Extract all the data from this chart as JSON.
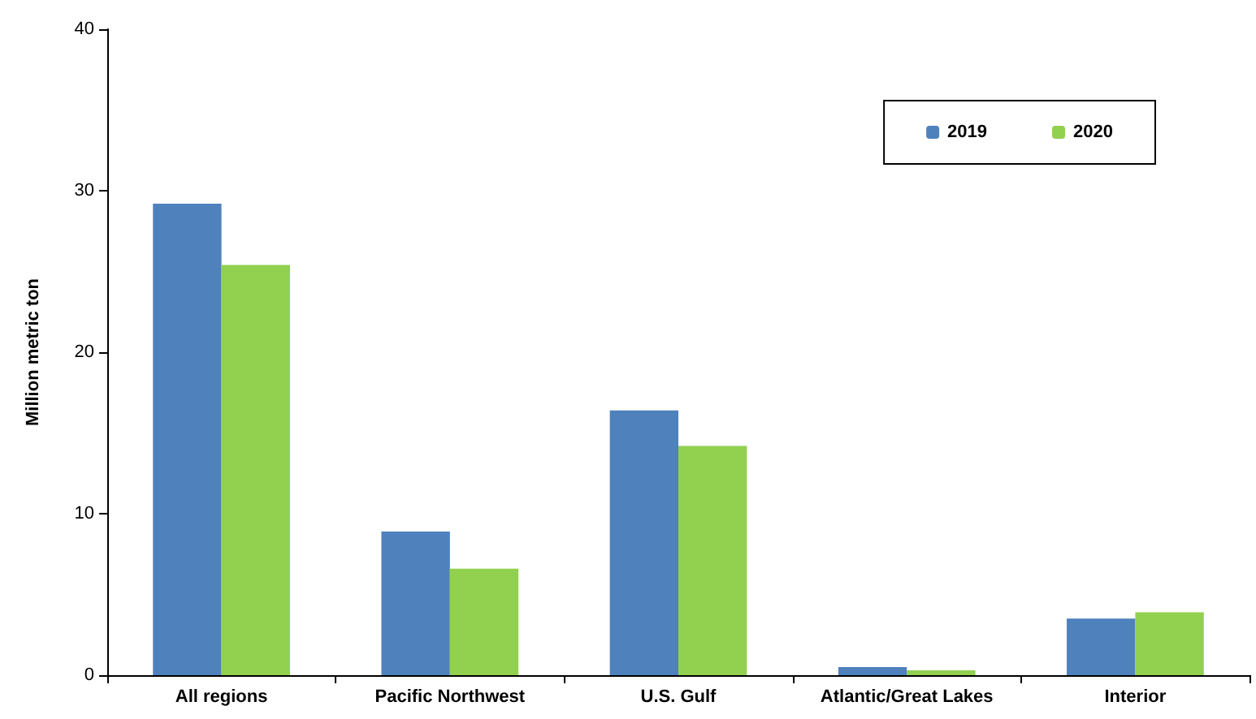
{
  "chart_data": {
    "type": "bar",
    "ylabel": "Million metric ton",
    "categories": [
      "All regions",
      "Pacific Northwest",
      "U.S. Gulf",
      "Atlantic/Great Lakes",
      "Interior"
    ],
    "series": [
      {
        "name": "2019",
        "color": "#4f81bd",
        "values": [
          29.2,
          8.9,
          16.4,
          0.5,
          3.5
        ]
      },
      {
        "name": "2020",
        "color": "#92d050",
        "values": [
          25.4,
          6.6,
          14.2,
          0.3,
          3.9
        ]
      }
    ],
    "ylim": [
      0,
      40
    ],
    "yticks": [
      0,
      10,
      20,
      30,
      40
    ],
    "grid": false,
    "legend": "top right"
  }
}
